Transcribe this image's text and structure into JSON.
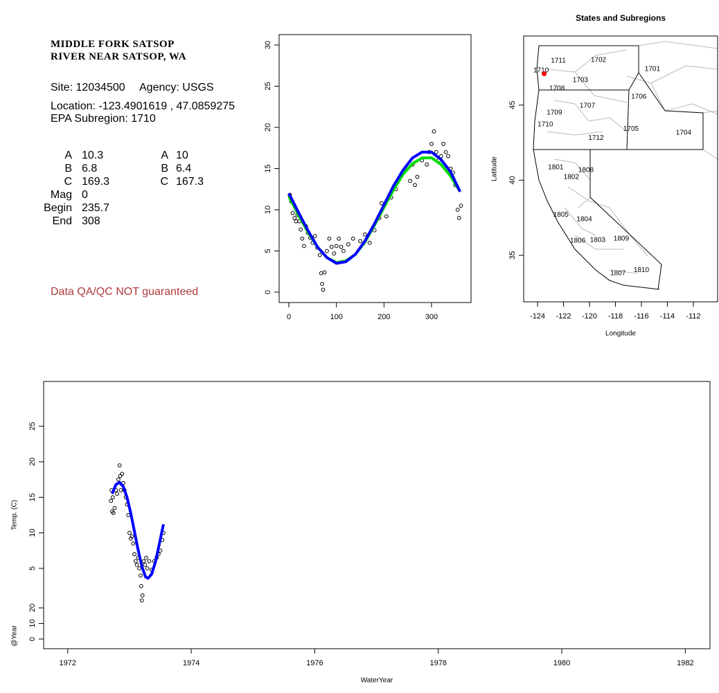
{
  "info": {
    "title": [
      "MIDDLE FORK SATSOP",
      "RIVER NEAR SATSOP, WA"
    ],
    "site": "Site: 12034500",
    "agency": "Agency: USGS",
    "location": "Location: -123.4901619 , 47.0859275",
    "subregion": "EPA Subregion: 1710",
    "params": [
      [
        "A",
        "10.3",
        "A",
        "10"
      ],
      [
        "B",
        "6.8",
        "B",
        "6.4"
      ],
      [
        "C",
        "169.3",
        "C",
        "167.3"
      ],
      [
        "Mag",
        "0"
      ],
      [
        "Begin",
        "235.7"
      ],
      [
        "End",
        "308"
      ]
    ],
    "note": "Data QA/QC NOT guaranteed"
  },
  "chart_data": [
    {
      "type": "scatter",
      "xlim": [
        -20.4,
        383
      ],
      "xticks": [
        0,
        100,
        200,
        300
      ],
      "ylim": [
        -1.26,
        31.26
      ],
      "yticks": [
        0,
        5,
        10,
        15,
        20,
        25,
        30
      ],
      "series": [
        {
          "mode": "points",
          "color": "#000000",
          "x": [
            2,
            5,
            8,
            12,
            15,
            18,
            22,
            25,
            28,
            32,
            36,
            40,
            45,
            50,
            55,
            60,
            65,
            68,
            70,
            72,
            75,
            80,
            85,
            90,
            95,
            100,
            105,
            110,
            115,
            125,
            135,
            150,
            160,
            170,
            180,
            190,
            195,
            205,
            215,
            225,
            235,
            245,
            255,
            260,
            265,
            270,
            280,
            290,
            295,
            300,
            305,
            310,
            315,
            320,
            325,
            330,
            335,
            340,
            345,
            350,
            355,
            358,
            362
          ],
          "values": [
            11.8,
            11,
            9.6,
            9,
            8.6,
            9.4,
            8.6,
            7.6,
            6.5,
            5.6,
            8,
            7.2,
            6.6,
            6,
            6.8,
            5.4,
            4.5,
            2.3,
            1,
            0.3,
            2.4,
            5,
            6.5,
            5.5,
            4.7,
            5.6,
            6.5,
            5.5,
            5,
            5.8,
            6.5,
            6.2,
            7,
            6,
            7.5,
            9,
            10.8,
            9.2,
            11.5,
            12.5,
            14,
            15,
            13.5,
            15.5,
            13,
            14,
            16,
            15.5,
            17,
            18,
            19.5,
            17,
            16,
            16.5,
            18,
            17,
            16.5,
            15,
            14.5,
            13,
            10,
            9,
            10.5
          ]
        },
        {
          "mode": "line",
          "color": "#00dd00",
          "x": [
            0,
            20,
            40,
            60,
            80,
            100,
            120,
            140,
            160,
            180,
            200,
            220,
            240,
            260,
            280,
            300,
            320,
            340,
            360
          ],
          "values": [
            11.6,
            9.4,
            7.3,
            5.5,
            4.2,
            3.6,
            3.8,
            4.6,
            6.1,
            8.1,
            10.3,
            12.4,
            14.3,
            15.6,
            16.3,
            16.3,
            15.5,
            14.1,
            12.2
          ]
        },
        {
          "mode": "line",
          "color": "#0000ff",
          "x": [
            0,
            20,
            40,
            60,
            80,
            100,
            120,
            140,
            160,
            180,
            200,
            220,
            240,
            260,
            280,
            300,
            320,
            340,
            360
          ],
          "values": [
            12,
            9.7,
            7.5,
            5.5,
            4.2,
            3.5,
            3.7,
            4.6,
            6.2,
            8.3,
            10.6,
            12.9,
            14.8,
            16.3,
            17,
            17,
            16.1,
            14.6,
            12.2
          ]
        }
      ]
    },
    {
      "type": "map",
      "title": "States and Subregions",
      "xlabel": "Longitude",
      "ylabel": "Latitude",
      "xlim": [
        -125.07,
        -110.13
      ],
      "xticks": [
        -124,
        -122,
        -120,
        -118,
        -116,
        -114,
        -112
      ],
      "ylim": [
        31.9,
        49.6
      ],
      "yticks": [
        35,
        40,
        45
      ],
      "regions": [
        {
          "label": "1702",
          "lon": -119.3,
          "lat": 48.0
        },
        {
          "label": "1701",
          "lon": -115.15,
          "lat": 47.4
        },
        {
          "label": "1711",
          "lon": -122.4,
          "lat": 47.95
        },
        {
          "label": "1710",
          "lon": -123.73,
          "lat": 47.3
        },
        {
          "label": "1703",
          "lon": -120.7,
          "lat": 46.66
        },
        {
          "label": "1708",
          "lon": -122.5,
          "lat": 46.1
        },
        {
          "label": "1706",
          "lon": -116.2,
          "lat": 45.55
        },
        {
          "label": "1707",
          "lon": -120.16,
          "lat": 44.95
        },
        {
          "label": "1709",
          "lon": -122.7,
          "lat": 44.5
        },
        {
          "label": "1710",
          "lon": -123.4,
          "lat": 43.7
        },
        {
          "label": "1705",
          "lon": -116.8,
          "lat": 43.4
        },
        {
          "label": "1704",
          "lon": -112.75,
          "lat": 43.16
        },
        {
          "label": "1712",
          "lon": -119.5,
          "lat": 42.8
        },
        {
          "label": "1801",
          "lon": -122.6,
          "lat": 40.85
        },
        {
          "label": "1808",
          "lon": -120.27,
          "lat": 40.67
        },
        {
          "label": "1802",
          "lon": -121.4,
          "lat": 40.2
        },
        {
          "label": "1805",
          "lon": -122.2,
          "lat": 37.7
        },
        {
          "label": "1804",
          "lon": -120.4,
          "lat": 37.4
        },
        {
          "label": "1809",
          "lon": -117.55,
          "lat": 36.1
        },
        {
          "label": "1803",
          "lon": -119.36,
          "lat": 36.0
        },
        {
          "label": "1806",
          "lon": -120.9,
          "lat": 35.97
        },
        {
          "label": "1810",
          "lon": -116.0,
          "lat": 34.0
        },
        {
          "label": "1807",
          "lon": -117.8,
          "lat": 33.8
        }
      ],
      "site": {
        "lon": -123.4901619,
        "lat": 47.0859275,
        "color": "#ff0000"
      }
    },
    {
      "type": "scatter",
      "xlabel": "WaterYear",
      "ylabel": "Temp. (C)",
      "y2label": "@Year",
      "xlim": [
        1971.61,
        1982.4
      ],
      "xticks": [
        1972,
        1974,
        1976,
        1978,
        1980,
        1982
      ],
      "ylim": [
        -6.3,
        31.3
      ],
      "yticks": [
        5,
        10,
        15,
        20,
        25
      ],
      "y2lim": [
        -6.2,
        165.3
      ],
      "y2ticks": [
        0,
        10,
        20
      ],
      "series": [
        {
          "mode": "points",
          "color": "#000000",
          "x": [
            1972.7,
            1972.71,
            1972.72,
            1972.73,
            1972.74,
            1972.76,
            1972.78,
            1972.8,
            1972.82,
            1972.84,
            1972.85,
            1972.86,
            1972.88,
            1972.9,
            1972.92,
            1972.94,
            1972.96,
            1972.98,
            1973.0,
            1973.02,
            1973.04,
            1973.06,
            1973.08,
            1973.1,
            1973.12,
            1973.14,
            1973.16,
            1973.18,
            1973.19,
            1973.2,
            1973.21,
            1973.23,
            1973.25,
            1973.27,
            1973.29,
            1973.32,
            1973.36,
            1973.4,
            1973.44,
            1973.47,
            1973.5,
            1973.53,
            1973.55
          ],
          "values": [
            14.5,
            16,
            13,
            15,
            12.8,
            13.5,
            16,
            15.5,
            17.5,
            19.5,
            18,
            16,
            18.3,
            17,
            16,
            15,
            14,
            12.5,
            10,
            9.2,
            9.5,
            8.5,
            7,
            6,
            5.5,
            6.5,
            5,
            4,
            2.5,
            0.5,
            1.2,
            6,
            5.5,
            6.5,
            5,
            6,
            4.8,
            6,
            6.5,
            7,
            7.5,
            9,
            10
          ]
        },
        {
          "mode": "line",
          "color": "#0000ff",
          "x": [
            1972.72,
            1972.78,
            1972.84,
            1972.9,
            1972.96,
            1973.02,
            1973.08,
            1973.14,
            1973.2,
            1973.26,
            1973.3,
            1973.36,
            1973.42,
            1973.48,
            1973.55
          ],
          "values": [
            15.5,
            16.8,
            17.1,
            16.5,
            15,
            12.8,
            10.2,
            7.6,
            5.3,
            3.8,
            3.6,
            4.2,
            5.9,
            8.3,
            11.2
          ]
        }
      ]
    }
  ]
}
